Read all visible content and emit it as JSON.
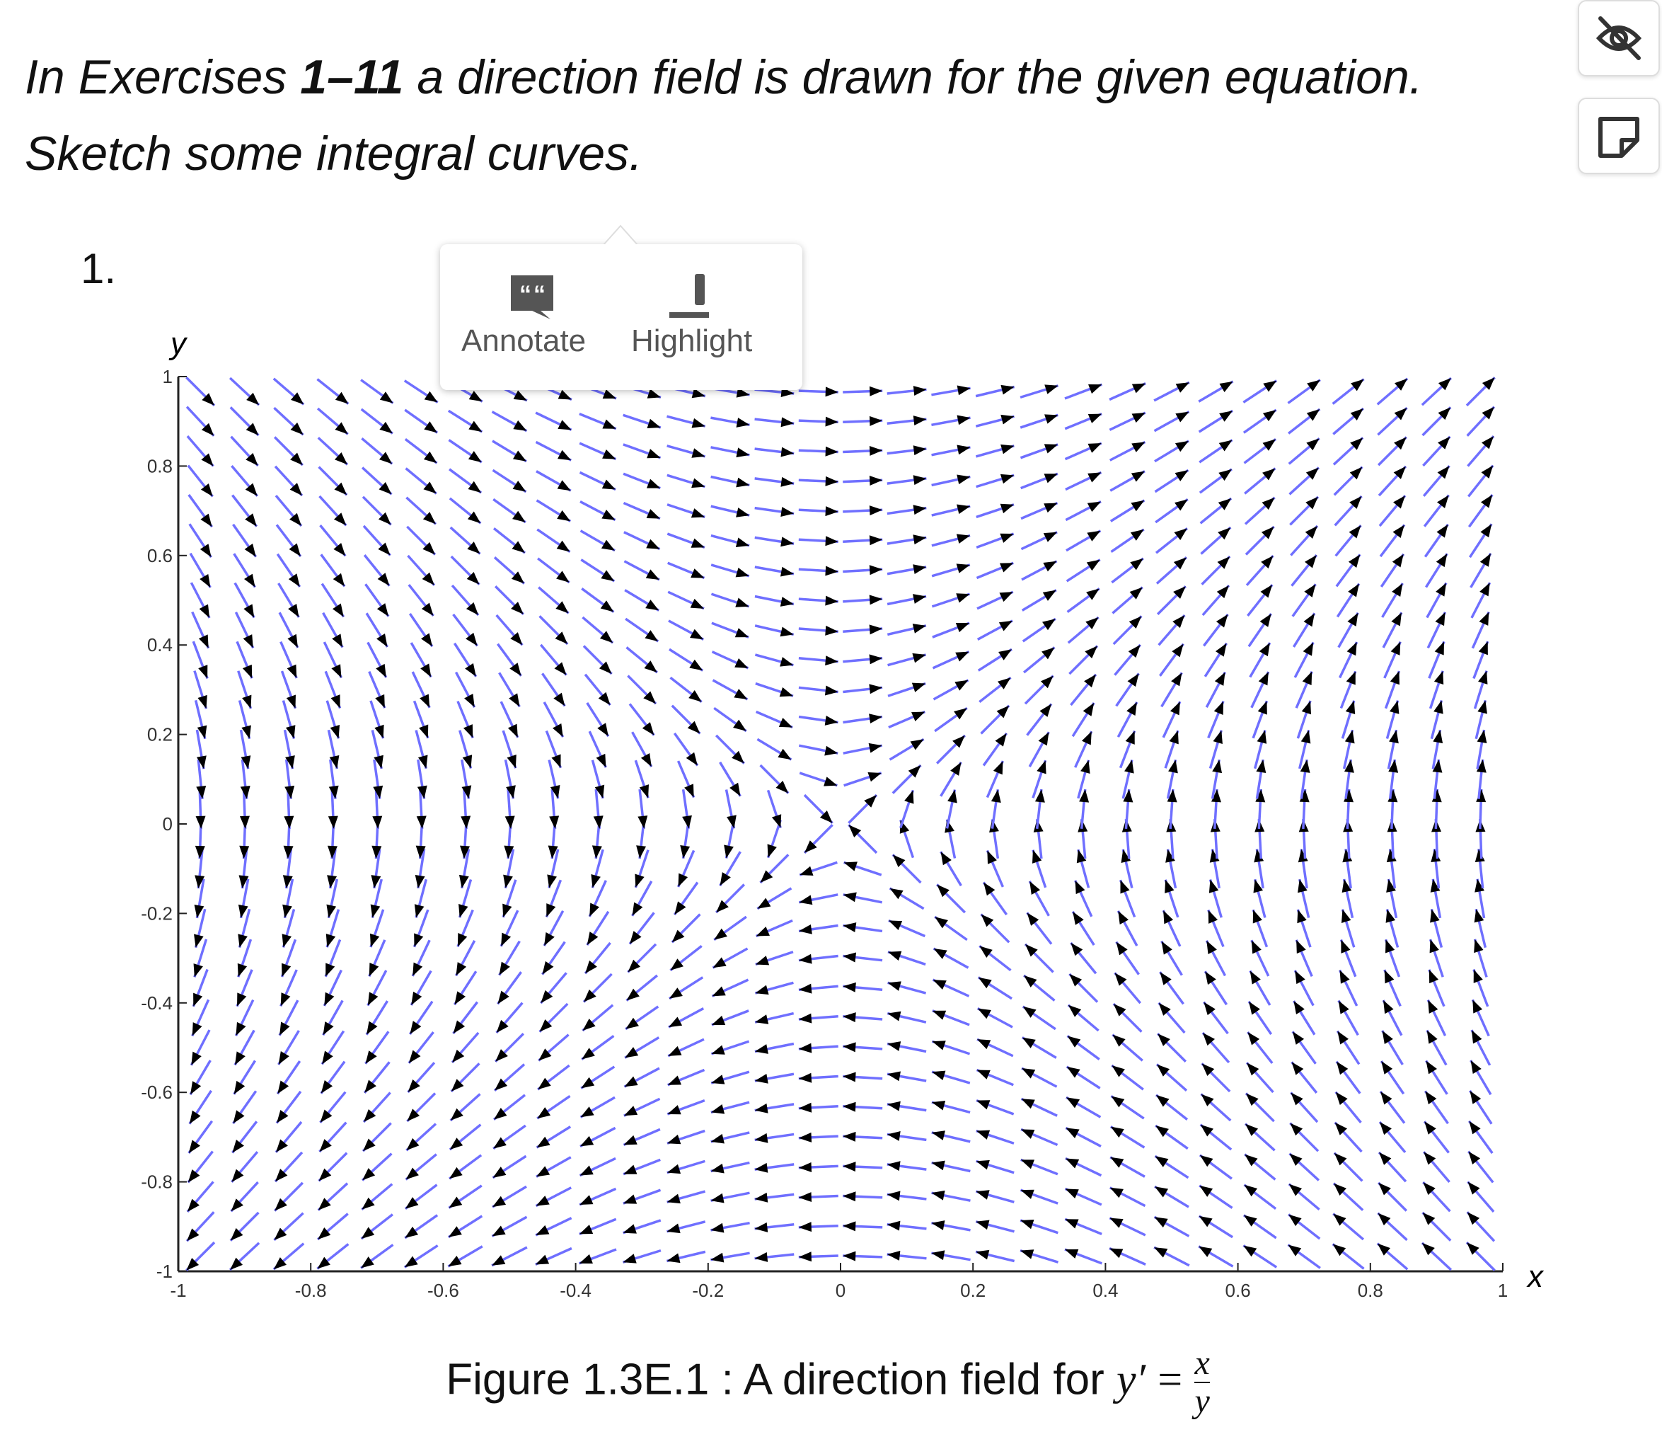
{
  "instructions": {
    "lead": "In Exercises ",
    "range": "1–11",
    "rest": " a direction field is drawn for the given equation.",
    "line2": "Sketch some integral curves."
  },
  "exercise": {
    "number": "1."
  },
  "popup": {
    "annotate": "Annotate",
    "highlight": "Highlight"
  },
  "chart_data": {
    "type": "quiver",
    "xlabel": "x",
    "ylabel": "y",
    "xlim": [
      -1,
      1
    ],
    "ylim": [
      -1,
      1
    ],
    "xticks": [
      -1,
      -0.8,
      -0.6,
      -0.4,
      -0.2,
      0,
      0.2,
      0.4,
      0.6,
      0.8,
      1
    ],
    "yticks": [
      -1,
      -0.8,
      -0.6,
      -0.4,
      -0.2,
      0,
      0.2,
      0.4,
      0.6,
      0.8,
      1
    ],
    "color": "#6f6fff"
  },
  "caption": {
    "text": "Figure 1.3E.1 : A direction field for ",
    "lhs": "y′",
    "eq": "=",
    "num": "x",
    "den": "y"
  }
}
